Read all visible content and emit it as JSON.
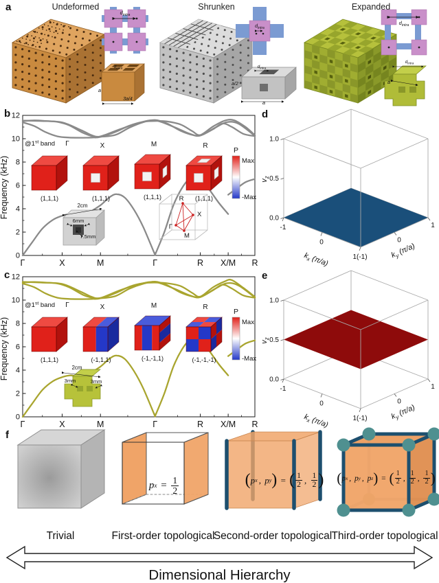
{
  "panel_a": {
    "label": "a",
    "structures": [
      {
        "title": "Undeformed",
        "dim_label": "d_{intra}",
        "unit_labels": [
          "d_{intra}",
          "a",
          "3a/4"
        ]
      },
      {
        "title": "Shrunken",
        "dim_label": "d_{intra}",
        "unit_labels": [
          "d_{intra}",
          "a/2",
          "a"
        ]
      },
      {
        "title": "Expanded",
        "dim_label": "d_{intra}",
        "unit_labels": [
          "d_{intra}",
          "a"
        ]
      }
    ]
  },
  "panel_b": {
    "label": "b",
    "band_tag": "@1^{st} band",
    "modes": [
      {
        "point": "Γ",
        "parity": "(1,1,1)",
        "style": "allred",
        "windows": []
      },
      {
        "point": "X",
        "parity": "(1,1,1)",
        "style": "allred",
        "windows": [
          "front"
        ]
      },
      {
        "point": "M",
        "parity": "(1,1,1)",
        "style": "allred",
        "windows": [
          "front",
          "right"
        ]
      },
      {
        "point": "R",
        "parity": "(1,1,1)",
        "style": "allred",
        "windows": [
          "front",
          "right",
          "top"
        ]
      }
    ],
    "colorbar": {
      "title": "P",
      "max": "Max",
      "min": "-Max"
    },
    "sample_labels": [
      "2cm",
      "6mm",
      "7.5mm"
    ],
    "bz_labels": [
      "R",
      "X",
      "Γ",
      "M"
    ]
  },
  "panel_c": {
    "label": "c",
    "band_tag": "@1^{st} band",
    "modes": [
      {
        "point": "Γ",
        "parity": "(1,1,1)",
        "style": "allred",
        "windows": []
      },
      {
        "point": "X",
        "parity": "(-1,1,1)",
        "style": "half",
        "windows": []
      },
      {
        "point": "M",
        "parity": "(-1,-1,1)",
        "style": "stripe",
        "windows": []
      },
      {
        "point": "R",
        "parity": "(-1,-1,-1)",
        "style": "checker",
        "windows": []
      }
    ],
    "colorbar": {
      "title": "P",
      "max": "Max",
      "min": "-Max"
    },
    "sample_labels": [
      "2cm",
      "3mm",
      "3mm"
    ]
  },
  "panel_d": {
    "label": "d"
  },
  "panel_e": {
    "label": "e"
  },
  "panel_f": {
    "label": "f",
    "items": [
      {
        "label": "Trivial",
        "style": "trivial",
        "formula": []
      },
      {
        "label": "First-order topological",
        "style": "first",
        "formula": [
          {
            "t": "v",
            "b": "p",
            "s": "x"
          },
          {
            "t": "t",
            "v": " = "
          },
          {
            "t": "f",
            "n": "1",
            "d": "2"
          }
        ]
      },
      {
        "label": "Second-order topological",
        "style": "second",
        "formula": [
          {
            "t": "p",
            "v": "("
          },
          {
            "t": "v",
            "b": "p",
            "s": "x"
          },
          {
            "t": "t",
            "v": ", "
          },
          {
            "t": "v",
            "b": "p",
            "s": "y"
          },
          {
            "t": "p",
            "v": ")"
          },
          {
            "t": "t",
            "v": " = "
          },
          {
            "t": "p",
            "v": "("
          },
          {
            "t": "f",
            "n": "1",
            "d": "2"
          },
          {
            "t": "t",
            "v": ", "
          },
          {
            "t": "f",
            "n": "1",
            "d": "2"
          },
          {
            "t": "p",
            "v": ")"
          }
        ]
      },
      {
        "label": "Third-order topological",
        "style": "third",
        "formula": [
          {
            "t": "p",
            "v": "("
          },
          {
            "t": "v",
            "b": "p",
            "s": "x"
          },
          {
            "t": "t",
            "v": ", "
          },
          {
            "t": "v",
            "b": "p",
            "s": "y"
          },
          {
            "t": "t",
            "v": ", "
          },
          {
            "t": "v",
            "b": "p",
            "s": "z"
          },
          {
            "t": "p",
            "v": ")"
          },
          {
            "t": "t",
            "v": " = "
          },
          {
            "t": "p",
            "v": "("
          },
          {
            "t": "f",
            "n": "1",
            "d": "2"
          },
          {
            "t": "t",
            "v": ", "
          },
          {
            "t": "f",
            "n": "1",
            "d": "2"
          },
          {
            "t": "t",
            "v": ", "
          },
          {
            "t": "f",
            "n": "1",
            "d": "2"
          },
          {
            "t": "p",
            "v": ")"
          }
        ]
      }
    ]
  },
  "footer": {
    "arrow_label": "Dimensional Hierarchy"
  },
  "colors": {
    "band_b": "#8a8a8a",
    "band_c": "#a9a52f",
    "mode_red": "#e0211a",
    "mode_blue": "#2438c8",
    "plane_d": "#1a4f7a",
    "plane_e": "#8e0b0b",
    "f_orange": "#f0a468",
    "f_edge": "#1d4f6e",
    "f_node": "#4f9090",
    "pink": "#c98fc9",
    "blue_link": "#7b9bd2",
    "orange_struct": "#c98a3f",
    "gray_struct": "#c2c2c2",
    "green_struct": "#a0ad31"
  },
  "chart_data": [
    {
      "id": "b",
      "type": "line",
      "title": "",
      "ylabel": "Frequency (kHz)",
      "ylim": [
        0,
        12
      ],
      "yticks": [
        0,
        2,
        4,
        6,
        8,
        10,
        12
      ],
      "x_tick_labels": [
        "Γ",
        "X",
        "M",
        "Γ",
        "R",
        "X/M",
        "R"
      ],
      "x_tick_pos": [
        0,
        0.17,
        0.335,
        0.57,
        0.765,
        0.885,
        1
      ],
      "line_color": "#8a8a8a",
      "bands": [
        [
          [
            0,
            0
          ],
          [
            0.04,
            1.1
          ],
          [
            0.085,
            2.3
          ],
          [
            0.13,
            3.05
          ],
          [
            0.17,
            3.4
          ],
          [
            0.205,
            3.55
          ],
          [
            0.25,
            3.45
          ],
          [
            0.29,
            3.75
          ],
          [
            0.335,
            4.3
          ],
          [
            0.375,
            5.0
          ],
          [
            0.405,
            5.25
          ],
          [
            0.44,
            4.95
          ],
          [
            0.48,
            3.9
          ],
          [
            0.52,
            2.4
          ],
          [
            0.57,
            0.05
          ]
        ],
        [
          [
            0.57,
            0.05
          ],
          [
            0.61,
            2.0
          ],
          [
            0.65,
            4.35
          ],
          [
            0.69,
            5.9
          ],
          [
            0.725,
            6.68
          ],
          [
            0.748,
            6.78
          ],
          [
            0.765,
            6.6
          ],
          [
            0.8,
            5.75
          ],
          [
            0.845,
            4.5
          ],
          [
            0.885,
            3.55
          ]
        ],
        [
          [
            0.885,
            5.2
          ],
          [
            0.92,
            5.72
          ],
          [
            0.96,
            6.28
          ],
          [
            1,
            6.55
          ]
        ],
        [
          [
            0,
            11.5
          ],
          [
            0.05,
            11.57
          ],
          [
            0.1,
            11.52
          ],
          [
            0.15,
            11.44
          ],
          [
            0.2,
            11.15
          ],
          [
            0.26,
            10.5
          ],
          [
            0.3,
            10.22
          ],
          [
            0.335,
            10.17
          ],
          [
            0.4,
            10.33
          ],
          [
            0.46,
            10.95
          ],
          [
            0.52,
            11.42
          ],
          [
            0.57,
            11.6
          ],
          [
            0.62,
            11.32
          ],
          [
            0.68,
            10.68
          ],
          [
            0.73,
            10.33
          ],
          [
            0.765,
            10.27
          ],
          [
            0.82,
            10.82
          ],
          [
            0.86,
            11.3
          ],
          [
            0.9,
            11.02
          ],
          [
            0.95,
            10.42
          ],
          [
            1,
            10.22
          ]
        ],
        [
          [
            0,
            11.4
          ],
          [
            0.05,
            11.08
          ],
          [
            0.1,
            10.55
          ],
          [
            0.15,
            10.2
          ],
          [
            0.2,
            10.1
          ],
          [
            0.26,
            10.08
          ],
          [
            0.3,
            10.1
          ],
          [
            0.335,
            10.15
          ],
          [
            0.4,
            10.58
          ],
          [
            0.46,
            11.12
          ],
          [
            0.52,
            11.45
          ],
          [
            0.57,
            11.52
          ],
          [
            0.62,
            11.48
          ],
          [
            0.68,
            11.22
          ],
          [
            0.73,
            10.65
          ],
          [
            0.765,
            10.32
          ],
          [
            0.82,
            11.05
          ],
          [
            0.87,
            11.55
          ],
          [
            0.91,
            11.58
          ],
          [
            0.96,
            11.0
          ],
          [
            1,
            10.3
          ]
        ],
        [
          [
            0,
            11.55
          ],
          [
            0.08,
            11.52
          ],
          [
            0.17,
            11.4
          ],
          [
            0.25,
            10.75
          ],
          [
            0.3,
            10.28
          ],
          [
            0.335,
            10.2
          ],
          [
            0.42,
            10.82
          ],
          [
            0.5,
            11.35
          ],
          [
            0.57,
            11.57
          ],
          [
            0.65,
            11.02
          ],
          [
            0.72,
            10.42
          ],
          [
            0.765,
            10.28
          ],
          [
            0.83,
            10.95
          ],
          [
            0.88,
            11.42
          ],
          [
            0.93,
            11.28
          ],
          [
            1,
            10.24
          ]
        ]
      ]
    },
    {
      "id": "c",
      "type": "line",
      "title": "",
      "ylabel": "Frequency (kHz)",
      "ylim": [
        0,
        12
      ],
      "yticks": [
        0,
        2,
        4,
        6,
        8,
        10,
        12
      ],
      "x_tick_labels": [
        "Γ",
        "X",
        "M",
        "Γ",
        "R",
        "X/M",
        "R"
      ],
      "x_tick_pos": [
        0,
        0.17,
        0.335,
        0.57,
        0.765,
        0.885,
        1
      ],
      "line_color": "#a9a52f",
      "bands": [
        [
          [
            0,
            0
          ],
          [
            0.04,
            1.1
          ],
          [
            0.085,
            2.3
          ],
          [
            0.13,
            3.05
          ],
          [
            0.17,
            3.4
          ],
          [
            0.205,
            3.55
          ],
          [
            0.25,
            3.45
          ],
          [
            0.29,
            3.75
          ],
          [
            0.335,
            4.3
          ],
          [
            0.375,
            5.0
          ],
          [
            0.405,
            5.25
          ],
          [
            0.44,
            4.95
          ],
          [
            0.48,
            3.9
          ],
          [
            0.52,
            2.4
          ],
          [
            0.57,
            0.05
          ]
        ],
        [
          [
            0.57,
            0.05
          ],
          [
            0.61,
            2.0
          ],
          [
            0.65,
            4.35
          ],
          [
            0.69,
            5.9
          ],
          [
            0.725,
            6.68
          ],
          [
            0.748,
            6.78
          ],
          [
            0.765,
            6.6
          ],
          [
            0.8,
            5.75
          ],
          [
            0.845,
            4.5
          ],
          [
            0.885,
            3.55
          ]
        ],
        [
          [
            0.885,
            5.2
          ],
          [
            0.92,
            5.72
          ],
          [
            0.96,
            6.28
          ],
          [
            1,
            6.55
          ]
        ],
        [
          [
            0,
            11.5
          ],
          [
            0.05,
            11.55
          ],
          [
            0.1,
            11.5
          ],
          [
            0.15,
            11.42
          ],
          [
            0.2,
            11.1
          ],
          [
            0.26,
            10.45
          ],
          [
            0.3,
            10.2
          ],
          [
            0.335,
            10.16
          ],
          [
            0.4,
            10.35
          ],
          [
            0.46,
            10.98
          ],
          [
            0.52,
            11.4
          ],
          [
            0.57,
            11.58
          ],
          [
            0.62,
            11.3
          ],
          [
            0.68,
            10.65
          ],
          [
            0.73,
            10.32
          ],
          [
            0.765,
            10.26
          ],
          [
            0.82,
            10.85
          ],
          [
            0.86,
            11.32
          ],
          [
            0.9,
            11.0
          ],
          [
            0.95,
            10.4
          ],
          [
            1,
            10.2
          ]
        ],
        [
          [
            0,
            11.42
          ],
          [
            0.05,
            11.1
          ],
          [
            0.1,
            10.55
          ],
          [
            0.15,
            10.2
          ],
          [
            0.2,
            10.1
          ],
          [
            0.26,
            10.08
          ],
          [
            0.3,
            10.1
          ],
          [
            0.335,
            10.15
          ],
          [
            0.4,
            10.6
          ],
          [
            0.46,
            11.15
          ],
          [
            0.52,
            11.45
          ],
          [
            0.57,
            11.5
          ],
          [
            0.62,
            11.45
          ],
          [
            0.68,
            11.2
          ],
          [
            0.73,
            10.62
          ],
          [
            0.765,
            10.3
          ],
          [
            0.82,
            11.1
          ],
          [
            0.87,
            11.6
          ],
          [
            0.9,
            11.72
          ],
          [
            0.95,
            11.05
          ],
          [
            1,
            10.28
          ]
        ],
        [
          [
            0,
            11.56
          ],
          [
            0.08,
            11.5
          ],
          [
            0.17,
            11.38
          ],
          [
            0.25,
            10.72
          ],
          [
            0.3,
            10.26
          ],
          [
            0.335,
            10.18
          ],
          [
            0.42,
            10.85
          ],
          [
            0.5,
            11.35
          ],
          [
            0.57,
            11.55
          ],
          [
            0.65,
            11.0
          ],
          [
            0.72,
            10.4
          ],
          [
            0.765,
            10.26
          ],
          [
            0.83,
            10.98
          ],
          [
            0.88,
            11.45
          ],
          [
            0.93,
            11.25
          ],
          [
            1,
            10.22
          ]
        ]
      ]
    },
    {
      "id": "d",
      "type": "surface",
      "zlabel": "v_{z}",
      "xlabel": "k_{x} (π/a)",
      "ylabel": "k_{y} (π/a)",
      "xticks": [
        "-1",
        "0",
        "1(-1)"
      ],
      "yticks": [
        "0",
        "1"
      ],
      "zticks": [
        "0.0",
        "0.5",
        "1.0"
      ],
      "xlim": [
        -1,
        1
      ],
      "ylim": [
        -1,
        1
      ],
      "zlim": [
        0,
        1
      ],
      "z_value": 0.0,
      "surface_color": "#1a4f7a"
    },
    {
      "id": "e",
      "type": "surface",
      "zlabel": "v_{z}",
      "xlabel": "k_{x} (π/a)",
      "ylabel": "k_{y} (π/a)",
      "xticks": [
        "-1",
        "0",
        "1(-1)"
      ],
      "yticks": [
        "0",
        "1"
      ],
      "zticks": [
        "0.0",
        "0.5",
        "1.0"
      ],
      "xlim": [
        -1,
        1
      ],
      "ylim": [
        -1,
        1
      ],
      "zlim": [
        0,
        1
      ],
      "z_value": 0.5,
      "surface_color": "#8e0b0b"
    }
  ]
}
